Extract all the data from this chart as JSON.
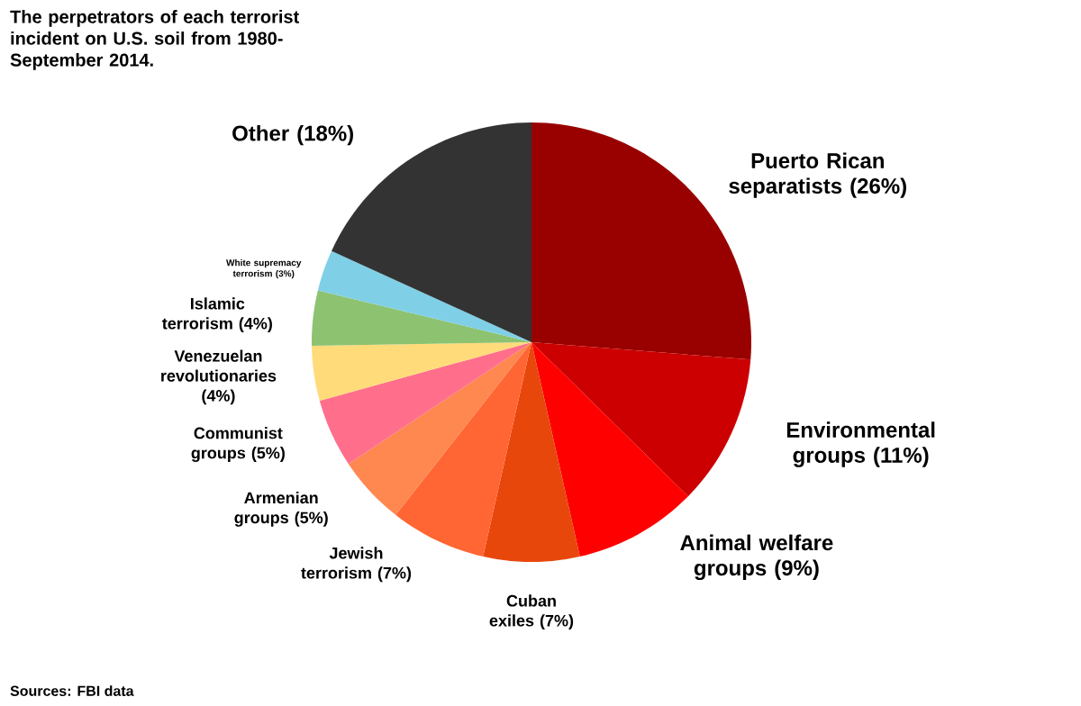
{
  "chart_data": {
    "type": "pie",
    "title": "The perpetrators of each terrorist incident on U.S. soil from 1980-September 2014.",
    "categories": [
      "Puerto Rican separatists (26%)",
      "Environmental groups (11%)",
      "Animal welfare groups (9%)",
      "Cuban exiles (7%)",
      "Jewish terrorism (7%)",
      "Armenian groups (5%)",
      "Communist groups (5%)",
      "Venezuelan revolutionaries (4%)",
      "Islamic terrorism (4%)",
      "White supremacy terrorism (3%)",
      "Other (18%)"
    ],
    "values": [
      26,
      11,
      9,
      7,
      7,
      5,
      5,
      4,
      4,
      3,
      18
    ],
    "colors": [
      "#990000",
      "#cc0000",
      "#ff0000",
      "#e8470c",
      "#ff6633",
      "#ff8750",
      "#ff6f8c",
      "#ffdb7a",
      "#8dc271",
      "#7fd0e6",
      "#333333"
    ],
    "annotations": [
      "Sources: FBI data"
    ]
  }
}
